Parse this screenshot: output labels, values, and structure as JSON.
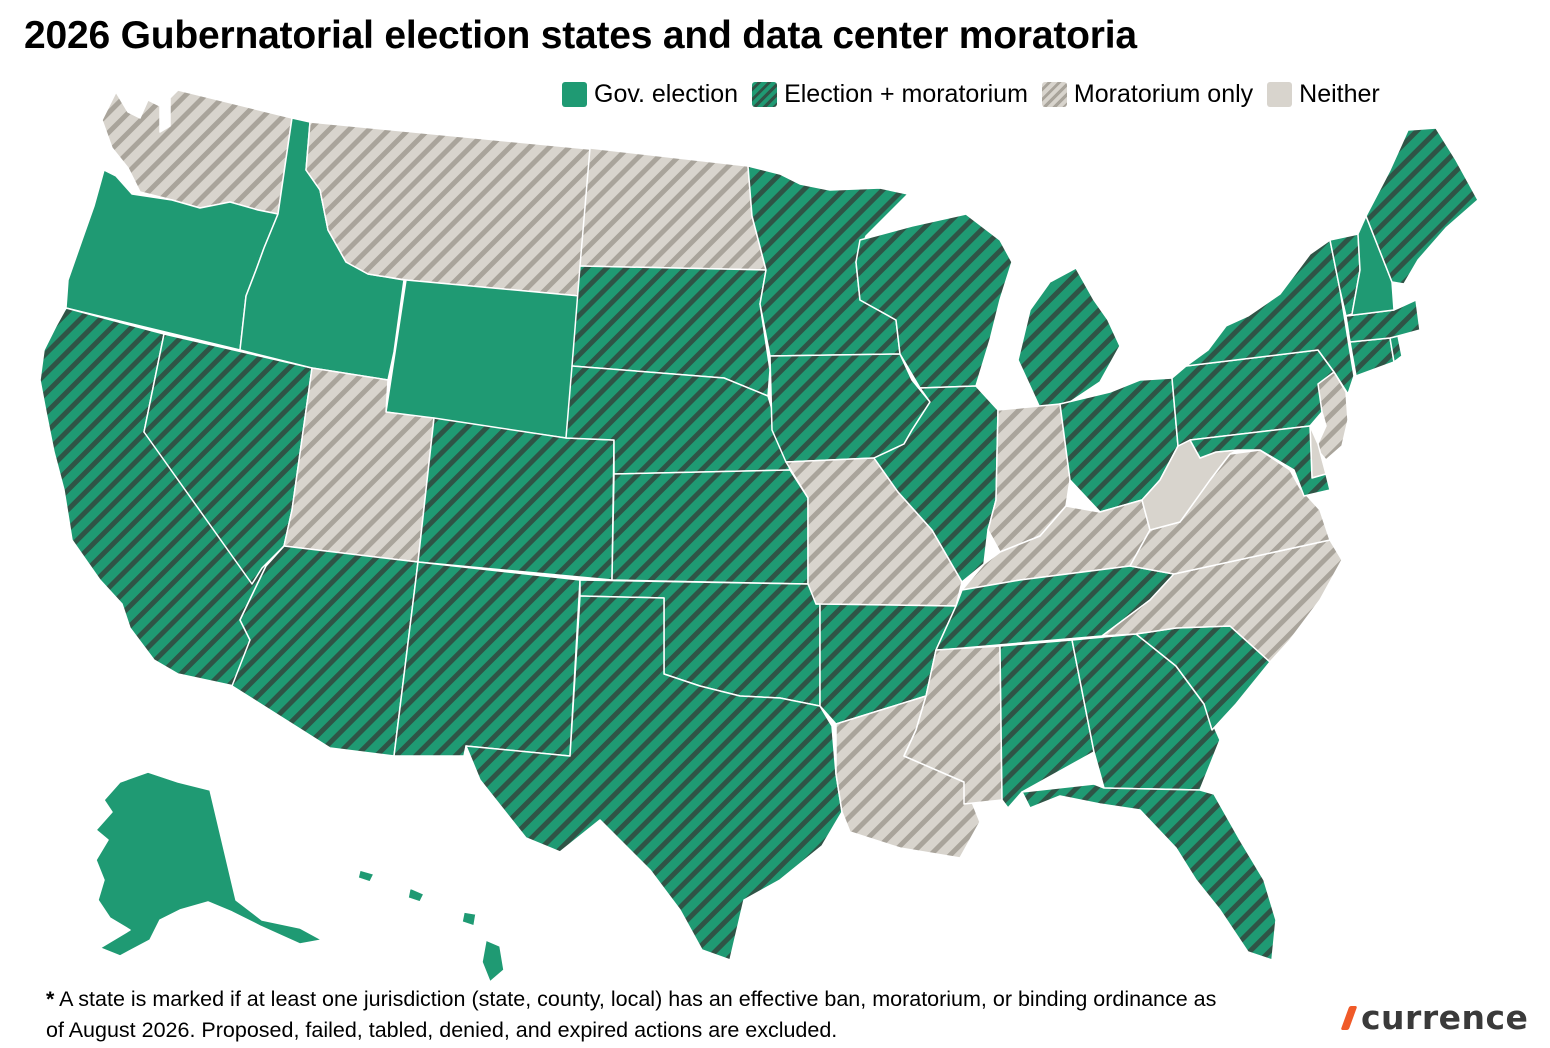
{
  "title": "2026 Gubernatorial election states and data center moratoria",
  "legend": [
    {
      "key": "gov",
      "label": "Gov. election"
    },
    {
      "key": "both",
      "label": "Election + moratorium"
    },
    {
      "key": "mor",
      "label": "Moratorium only"
    },
    {
      "key": "nei",
      "label": "Neither"
    }
  ],
  "colors": {
    "gov": "#1f9a73",
    "both_base": "#1f9a73",
    "both_stripe": "#2f5446",
    "mor_base": "#d8d4cd",
    "mor_stripe": "#a9a49b",
    "nei": "#d8d4cd",
    "border": "#ffffff"
  },
  "states": [
    {
      "abbr": "WA",
      "category": "mor"
    },
    {
      "abbr": "OR",
      "category": "gov"
    },
    {
      "abbr": "CA",
      "category": "both"
    },
    {
      "abbr": "NV",
      "category": "both"
    },
    {
      "abbr": "ID",
      "category": "gov"
    },
    {
      "abbr": "MT",
      "category": "mor"
    },
    {
      "abbr": "WY",
      "category": "gov"
    },
    {
      "abbr": "UT",
      "category": "mor"
    },
    {
      "abbr": "AZ",
      "category": "both"
    },
    {
      "abbr": "CO",
      "category": "both"
    },
    {
      "abbr": "NM",
      "category": "both"
    },
    {
      "abbr": "ND",
      "category": "mor"
    },
    {
      "abbr": "SD",
      "category": "both"
    },
    {
      "abbr": "NE",
      "category": "both"
    },
    {
      "abbr": "KS",
      "category": "both"
    },
    {
      "abbr": "OK",
      "category": "both"
    },
    {
      "abbr": "TX",
      "category": "both"
    },
    {
      "abbr": "MN",
      "category": "both"
    },
    {
      "abbr": "IA",
      "category": "both"
    },
    {
      "abbr": "MO",
      "category": "mor"
    },
    {
      "abbr": "AR",
      "category": "both"
    },
    {
      "abbr": "LA",
      "category": "mor"
    },
    {
      "abbr": "WI",
      "category": "both"
    },
    {
      "abbr": "IL",
      "category": "both"
    },
    {
      "abbr": "MI",
      "category": "both"
    },
    {
      "abbr": "IN",
      "category": "mor"
    },
    {
      "abbr": "OH",
      "category": "both"
    },
    {
      "abbr": "KY",
      "category": "mor"
    },
    {
      "abbr": "TN",
      "category": "both"
    },
    {
      "abbr": "MS",
      "category": "mor"
    },
    {
      "abbr": "AL",
      "category": "both"
    },
    {
      "abbr": "GA",
      "category": "both"
    },
    {
      "abbr": "FL",
      "category": "both"
    },
    {
      "abbr": "SC",
      "category": "both"
    },
    {
      "abbr": "NC",
      "category": "mor"
    },
    {
      "abbr": "VA",
      "category": "mor"
    },
    {
      "abbr": "WV",
      "category": "nei"
    },
    {
      "abbr": "PA",
      "category": "both"
    },
    {
      "abbr": "NY",
      "category": "both"
    },
    {
      "abbr": "NJ",
      "category": "mor"
    },
    {
      "abbr": "DE",
      "category": "nei"
    },
    {
      "abbr": "MD",
      "category": "both"
    },
    {
      "abbr": "CT",
      "category": "both"
    },
    {
      "abbr": "RI",
      "category": "both"
    },
    {
      "abbr": "MA",
      "category": "both"
    },
    {
      "abbr": "VT",
      "category": "both"
    },
    {
      "abbr": "NH",
      "category": "gov"
    },
    {
      "abbr": "ME",
      "category": "both"
    },
    {
      "abbr": "AK",
      "category": "gov"
    },
    {
      "abbr": "HI",
      "category": "gov"
    }
  ],
  "footnote": {
    "marker": "*",
    "text": " A state is marked if at least one jurisdiction (state, county, local) has an effective ban, moratorium, or binding ordinance as of August 2026. Proposed, failed, tabled, denied, and expired actions are excluded."
  },
  "brand": "currence"
}
